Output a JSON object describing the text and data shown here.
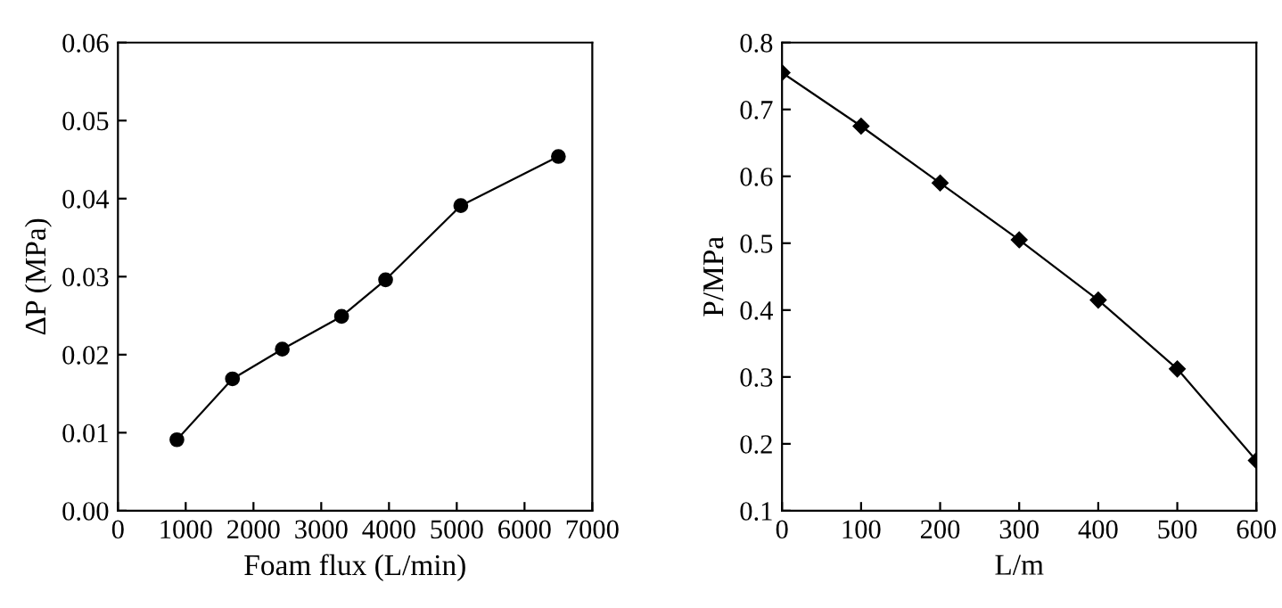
{
  "chart_data": [
    {
      "type": "line",
      "xlabel": "Foam flux (L/min)",
      "ylabel": "ΔP (MPa)",
      "marker": "circle",
      "line_style": "solid",
      "grid": false,
      "legend": false,
      "x": [
        870,
        1690,
        2425,
        3300,
        3950,
        5060,
        6500
      ],
      "series": [
        {
          "color": "#000000",
          "values": [
            0.0091,
            0.0169,
            0.0207,
            0.0249,
            0.0296,
            0.0391,
            0.0454
          ]
        }
      ],
      "xlim": [
        0,
        7000
      ],
      "xticks": [
        0,
        1000,
        2000,
        3000,
        4000,
        5000,
        6000,
        7000
      ],
      "ylim": [
        0,
        0.06
      ],
      "yticks": [
        {
          "value": 0,
          "label": "0.00"
        },
        0.01,
        0.02,
        0.03,
        0.04,
        0.05,
        0.06
      ]
    },
    {
      "type": "line",
      "xlabel": "L/m",
      "ylabel": "P/MPa",
      "marker": "diamond",
      "line_style": "solid",
      "grid": false,
      "legend": false,
      "x": [
        0,
        100,
        200,
        300,
        400,
        500,
        600
      ],
      "series": [
        {
          "color": "#000000",
          "values": [
            0.755,
            0.675,
            0.59,
            0.505,
            0.415,
            0.312,
            0.175
          ]
        }
      ],
      "xlim": [
        0,
        600
      ],
      "xticks": [
        0,
        100,
        200,
        300,
        400,
        500,
        600
      ],
      "ylim": [
        0.1,
        0.8
      ],
      "yticks": [
        0.1,
        0.2,
        0.3,
        0.4,
        0.5,
        0.6,
        0.7,
        0.8
      ]
    }
  ]
}
